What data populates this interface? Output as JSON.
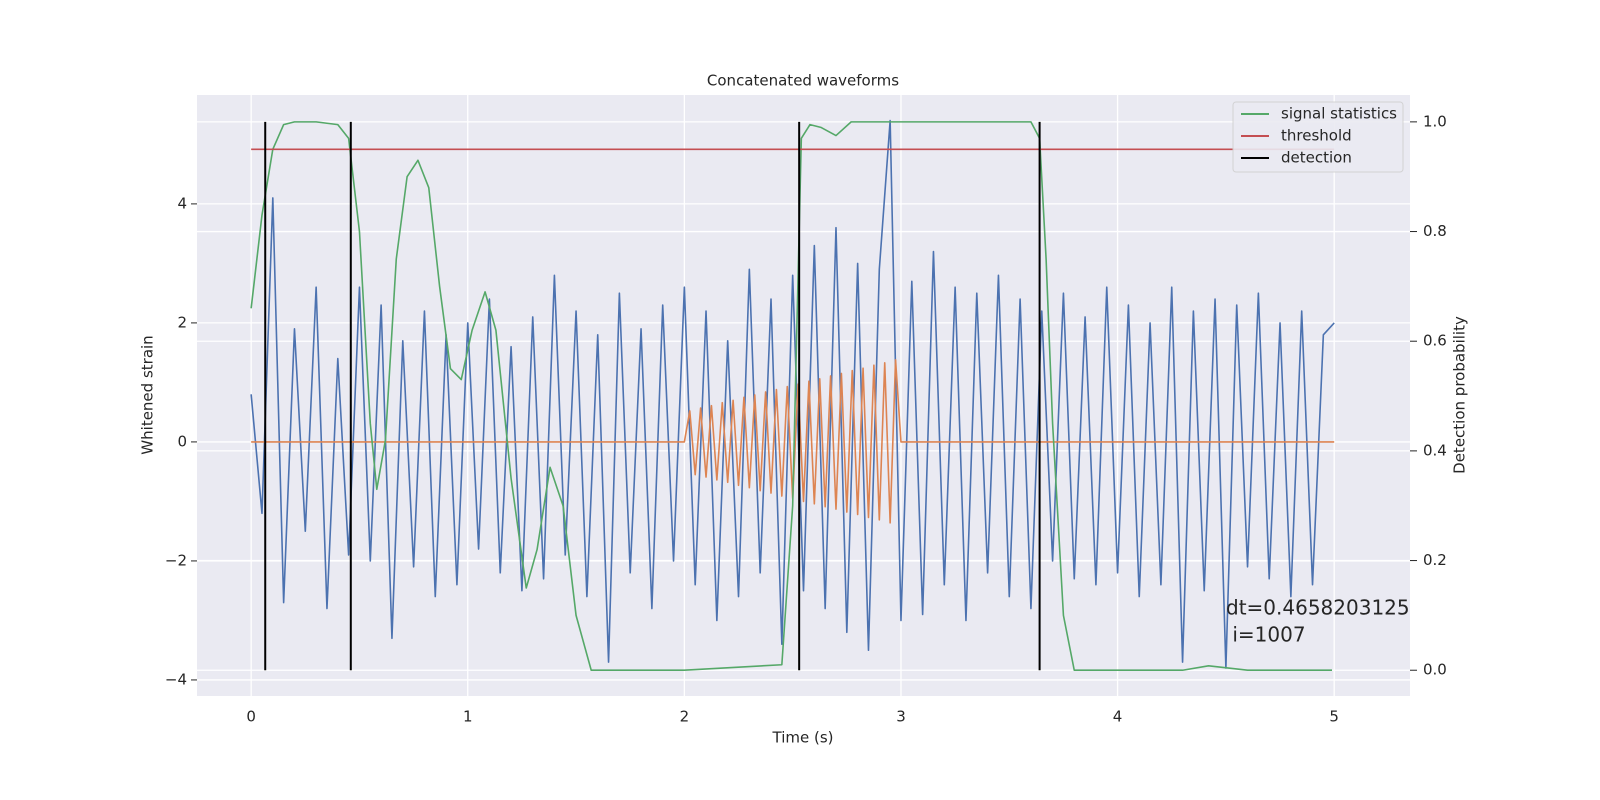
{
  "chart_data": {
    "type": "line",
    "title": "Concatenated waveforms",
    "x_label": "Time (s)",
    "y_label": "Whitened strain",
    "y2_label": "Detection probability",
    "xlim": [
      -0.25,
      5.35
    ],
    "ylim": [
      -4.27,
      5.83
    ],
    "y2lim": [
      -0.047,
      1.049
    ],
    "xticks": [
      0,
      1,
      2,
      3,
      4,
      5
    ],
    "yticks": [
      {
        "value": -4,
        "label": "−4"
      },
      {
        "value": -2,
        "label": "−2"
      },
      0,
      2,
      4
    ],
    "y2ticks": [
      {
        "value": 0,
        "label": "0.0"
      },
      0.2,
      0.4,
      0.6,
      0.8,
      {
        "value": 1,
        "label": "1.0"
      }
    ],
    "grid": true,
    "legend": "upper right",
    "series": [
      {
        "color": "#4c72b0",
        "x": [
          0,
          0.05,
          0.1,
          0.15,
          0.2,
          0.25,
          0.3,
          0.35,
          0.4,
          0.45,
          0.5,
          0.55,
          0.6,
          0.65,
          0.7,
          0.75,
          0.8,
          0.85,
          0.9,
          0.95,
          1,
          1.05,
          1.1,
          1.15,
          1.2,
          1.25,
          1.3,
          1.35,
          1.4,
          1.45,
          1.5,
          1.55,
          1.6,
          1.65,
          1.7,
          1.75,
          1.8,
          1.85,
          1.9,
          1.95,
          2,
          2.05,
          2.1,
          2.15,
          2.2,
          2.25,
          2.3,
          2.35,
          2.4,
          2.45,
          2.5,
          2.55,
          2.6,
          2.65,
          2.7,
          2.75,
          2.8,
          2.85,
          2.9,
          2.95,
          3,
          3.05,
          3.1,
          3.15,
          3.2,
          3.25,
          3.3,
          3.35,
          3.4,
          3.45,
          3.5,
          3.55,
          3.6,
          3.65,
          3.7,
          3.75,
          3.8,
          3.85,
          3.9,
          3.95,
          4,
          4.05,
          4.1,
          4.15,
          4.2,
          4.25,
          4.3,
          4.35,
          4.4,
          4.45,
          4.5,
          4.55,
          4.6,
          4.65,
          4.7,
          4.75,
          4.8,
          4.85,
          4.9,
          4.95,
          5
        ],
        "values": [
          0.8,
          -1.2,
          4.1,
          -2.7,
          1.9,
          -1.5,
          2.6,
          -2.8,
          1.4,
          -1.9,
          2.6,
          -2.0,
          2.3,
          -3.3,
          1.7,
          -2.1,
          2.2,
          -2.6,
          1.8,
          -2.4,
          2.0,
          -1.8,
          2.4,
          -2.2,
          1.6,
          -2.5,
          2.1,
          -2.3,
          2.8,
          -1.9,
          2.2,
          -2.6,
          1.8,
          -3.7,
          2.5,
          -2.2,
          1.9,
          -2.8,
          2.3,
          -2.0,
          2.6,
          -2.4,
          2.2,
          -3.0,
          1.7,
          -2.6,
          2.9,
          -2.2,
          2.4,
          -3.4,
          2.8,
          -2.5,
          3.3,
          -2.8,
          3.6,
          -3.2,
          3.0,
          -3.5,
          2.9,
          5.4,
          -3.0,
          2.7,
          -2.9,
          3.2,
          -2.4,
          2.6,
          -3.0,
          2.5,
          -2.2,
          2.8,
          -2.6,
          2.4,
          -2.8,
          2.2,
          -2.0,
          2.5,
          -2.3,
          2.1,
          -2.4,
          2.6,
          -2.2,
          2.3,
          -2.6,
          2.0,
          -2.4,
          2.6,
          -3.7,
          2.2,
          -2.5,
          2.4,
          -3.8,
          2.3,
          -2.1,
          2.5,
          -2.3,
          2.0,
          -2.6,
          2.2,
          -2.4,
          1.8,
          2.0
        ]
      },
      {
        "color": "#dd8452",
        "x": [
          0,
          2,
          2.025,
          2.05,
          2.075,
          2.1,
          2.125,
          2.15,
          2.175,
          2.2,
          2.225,
          2.25,
          2.275,
          2.3,
          2.325,
          2.35,
          2.375,
          2.4,
          2.425,
          2.45,
          2.475,
          2.5,
          2.525,
          2.55,
          2.575,
          2.6,
          2.625,
          2.65,
          2.675,
          2.7,
          2.725,
          2.75,
          2.775,
          2.8,
          2.825,
          2.85,
          2.875,
          2.9,
          2.925,
          2.95,
          2.975,
          3,
          5
        ],
        "values": [
          0,
          0,
          0.52,
          -0.55,
          0.57,
          -0.59,
          0.61,
          -0.64,
          0.66,
          -0.68,
          0.7,
          -0.73,
          0.75,
          -0.77,
          0.79,
          -0.82,
          0.84,
          -0.86,
          0.88,
          -0.91,
          0.93,
          -0.95,
          0.97,
          -1.0,
          1.02,
          -1.04,
          1.06,
          -1.09,
          1.11,
          -1.13,
          1.15,
          -1.18,
          1.2,
          -1.22,
          1.24,
          -1.27,
          1.29,
          -1.31,
          1.33,
          -1.36,
          1.38,
          0,
          0
        ]
      },
      {
        "name": "signal statistics",
        "color": "#55a868",
        "axis": "y2",
        "x": [
          0,
          0.05,
          0.1,
          0.15,
          0.2,
          0.3,
          0.4,
          0.45,
          0.5,
          0.55,
          0.58,
          0.62,
          0.67,
          0.72,
          0.77,
          0.82,
          0.87,
          0.92,
          0.97,
          1.02,
          1.08,
          1.13,
          1.2,
          1.27,
          1.32,
          1.38,
          1.44,
          1.5,
          1.57,
          2.0,
          2.45,
          2.5,
          2.54,
          2.58,
          2.63,
          2.7,
          2.77,
          3.0,
          3.6,
          3.64,
          3.67,
          3.7,
          3.75,
          3.8,
          4.3,
          4.42,
          4.6,
          4.99
        ],
        "values": [
          0.66,
          0.83,
          0.95,
          0.995,
          1.0,
          1.0,
          0.995,
          0.97,
          0.8,
          0.45,
          0.33,
          0.42,
          0.75,
          0.9,
          0.93,
          0.88,
          0.7,
          0.55,
          0.53,
          0.62,
          0.69,
          0.62,
          0.35,
          0.15,
          0.22,
          0.37,
          0.3,
          0.1,
          0.0,
          0.0,
          0.01,
          0.3,
          0.97,
          0.995,
          0.99,
          0.975,
          1.0,
          1.0,
          1.0,
          0.97,
          0.75,
          0.45,
          0.1,
          0.0,
          0.0,
          0.008,
          0.0,
          0.0
        ]
      },
      {
        "name": "threshold",
        "color": "#c44e52",
        "axis": "y2",
        "x": [
          0,
          5
        ],
        "values": [
          0.95,
          0.95
        ]
      },
      {
        "name": "detection",
        "color": "#000000",
        "axis": "y2",
        "type": "vlines",
        "x": [
          0.065,
          0.46,
          2.53,
          3.64
        ],
        "ymin": 0,
        "ymax": 1
      }
    ],
    "annotation": [
      "dt=0.4658203125",
      " i=1007"
    ]
  }
}
